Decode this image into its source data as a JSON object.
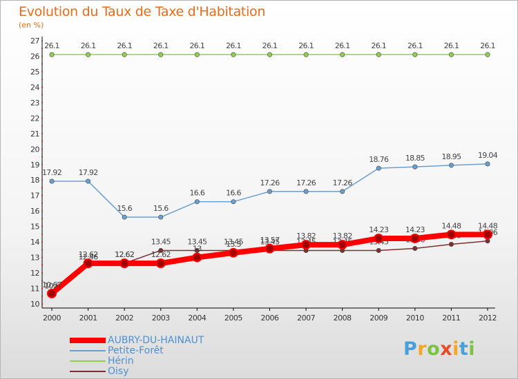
{
  "title": "Evolution du Taux de Taxe d'Habitation",
  "subtitle": "(en %)",
  "brand": {
    "letters": [
      "P",
      "r",
      "o",
      "x",
      "i",
      "t",
      "i"
    ]
  },
  "colors": {
    "title": "#ec6a16",
    "axis": "#000000",
    "grid_dots": "#dd0000",
    "legend_text": "#4f8fcf",
    "brand_letters": [
      "#4a9fd8",
      "#f5a623",
      "#7cc243",
      "#e44d26",
      "#f5a623",
      "#4a9fd8",
      "#7cc243"
    ]
  },
  "chart_data": {
    "type": "line",
    "categories": [
      "2000",
      "2001",
      "2002",
      "2003",
      "2004",
      "2005",
      "2006",
      "2007",
      "2008",
      "2009",
      "2010",
      "2011",
      "2012"
    ],
    "ylim": [
      10,
      27
    ],
    "yticks": [
      "10",
      "11",
      "12",
      "13",
      "14",
      "15",
      "16",
      "17",
      "18",
      "19",
      "20",
      "21",
      "22",
      "23",
      "24",
      "25",
      "26",
      "27"
    ],
    "grid": false,
    "legend_position": "bottom-left",
    "series": [
      {
        "name": "Hérin",
        "color": "#8fd14f",
        "width": 1.5,
        "values": [
          26.1,
          26.1,
          26.1,
          26.1,
          26.1,
          26.1,
          26.1,
          26.1,
          26.1,
          26.1,
          26.1,
          26.1,
          26.1
        ],
        "labels": [
          "26.1",
          "26.1",
          "26.1",
          "26.1",
          "26.1",
          "26.1",
          "26.1",
          "26.1",
          "26.1",
          "26.1",
          "26.1",
          "26.1",
          "26.1"
        ]
      },
      {
        "name": "Petite-Forêt",
        "color": "#6a9fd0",
        "width": 1.5,
        "values": [
          17.92,
          17.92,
          15.6,
          15.6,
          16.6,
          16.6,
          17.26,
          17.26,
          17.26,
          18.76,
          18.85,
          18.95,
          19.04
        ],
        "labels": [
          "17.92",
          "17.92",
          "15.6",
          "15.6",
          "16.6",
          "16.6",
          "17.26",
          "17.26",
          "17.26",
          "18.76",
          "18.85",
          "18.95",
          "19.04"
        ]
      },
      {
        "name": "Oisy",
        "color": "#7a3030",
        "width": 1.5,
        "values": [
          10.6,
          12.46,
          12.62,
          13.45,
          13.45,
          13.45,
          13.45,
          13.45,
          13.45,
          13.45,
          13.58,
          13.85,
          14.06
        ],
        "labels": [
          "10.6",
          "12.46",
          "12.62",
          "13.45",
          "13.45",
          "13.45",
          "13.45",
          "13.45",
          "13.45",
          "13.45",
          "13.58",
          "13.85",
          "14.06"
        ]
      },
      {
        "name": "AUBRY-DU-HAINAUT",
        "color": "#ff0000",
        "width": 8,
        "values": [
          10.67,
          12.62,
          12.62,
          12.62,
          13.0,
          13.3,
          13.57,
          13.82,
          13.82,
          14.23,
          14.23,
          14.48,
          14.48
        ],
        "labels": [
          "10.67",
          "12.62",
          "12.62",
          "12.62",
          "13",
          "13.3",
          "13.57",
          "13.82",
          "13.82",
          "14.23",
          "14.23",
          "14.48",
          "14.48"
        ]
      }
    ],
    "legend_order": [
      "AUBRY-DU-HAINAUT",
      "Petite-Forêt",
      "Hérin",
      "Oisy"
    ]
  }
}
